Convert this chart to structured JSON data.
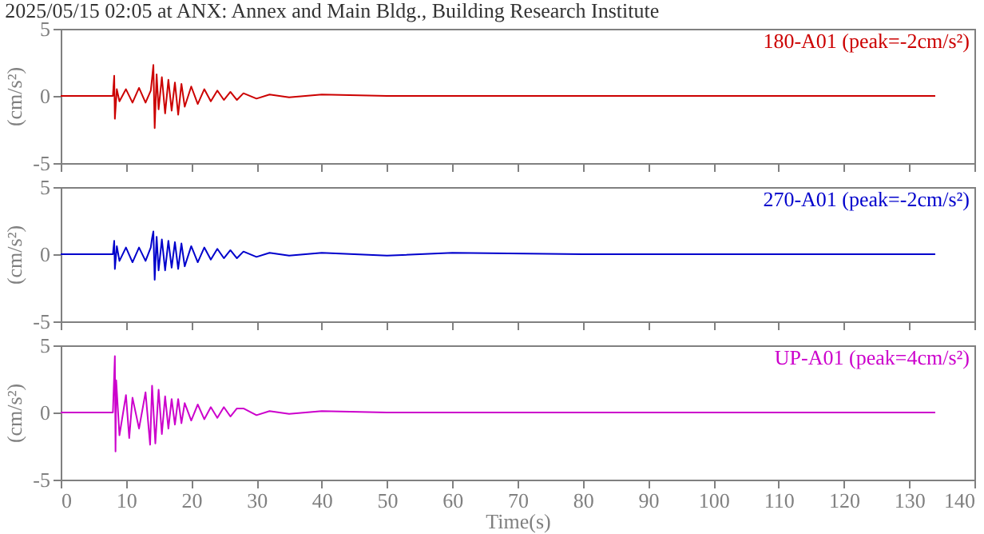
{
  "chart_data": [
    {
      "type": "line",
      "title": "2025/05/15 02:05 at ANX: Annex and Main Bldg., Building Research Institute",
      "ylabel": "(cm/s²)",
      "xlim": [
        0,
        140
      ],
      "xticks": [
        0,
        10,
        20,
        30,
        40,
        50,
        60,
        70,
        80,
        90,
        100,
        110,
        120,
        130,
        140
      ],
      "ylim": [
        -5,
        5
      ],
      "yticks": [
        -5,
        0,
        5
      ],
      "tick_labels": "y",
      "x": [
        0,
        8.0,
        8.2,
        8.3,
        8.6,
        9,
        10,
        11,
        12,
        13,
        13.8,
        14.0,
        14.2,
        14.4,
        14.7,
        15,
        15.5,
        16,
        16.5,
        17,
        17.5,
        18,
        18.5,
        19,
        20,
        21,
        22,
        23,
        24,
        25,
        26,
        27,
        28,
        30,
        32,
        35,
        40,
        50,
        60,
        80,
        100,
        134
      ],
      "series": [
        {
          "name": "180-A01 (peak=-2cm/s²)",
          "color": "#cc0000",
          "values": [
            0,
            0,
            1.5,
            -1.7,
            0.5,
            -0.4,
            0.5,
            -0.5,
            0.6,
            -0.5,
            0.4,
            1.3,
            2.3,
            -2.4,
            1.6,
            -1.0,
            1.4,
            -1.3,
            1.2,
            -1.1,
            1.0,
            -1.4,
            0.9,
            -0.8,
            0.7,
            -0.6,
            0.5,
            -0.4,
            0.4,
            -0.3,
            0.3,
            -0.3,
            0.2,
            -0.2,
            0.1,
            -0.1,
            0.1,
            0,
            0,
            0,
            0,
            0
          ]
        }
      ]
    },
    {
      "type": "line",
      "ylabel": "(cm/s²)",
      "xlim": [
        0,
        140
      ],
      "xticks": [
        0,
        10,
        20,
        30,
        40,
        50,
        60,
        70,
        80,
        90,
        100,
        110,
        120,
        130,
        140
      ],
      "ylim": [
        -5,
        5
      ],
      "yticks": [
        -5,
        0,
        5
      ],
      "tick_labels": "y",
      "x": [
        0,
        8.0,
        8.2,
        8.3,
        8.6,
        9,
        10,
        11,
        12,
        13,
        13.8,
        14.0,
        14.2,
        14.4,
        14.7,
        15,
        15.5,
        16,
        16.5,
        17,
        17.5,
        18,
        18.5,
        19,
        20,
        21,
        22,
        23,
        24,
        25,
        26,
        27,
        28,
        30,
        32,
        35,
        40,
        50,
        60,
        80,
        100,
        134
      ],
      "series": [
        {
          "name": "270-A01 (peak=-2cm/s²)",
          "color": "#0000cc",
          "values": [
            0,
            0,
            1.0,
            -1.1,
            0.6,
            -0.5,
            0.5,
            -0.6,
            0.5,
            -0.5,
            0.5,
            1.2,
            1.7,
            -1.9,
            1.3,
            -1.2,
            1.1,
            -1.2,
            1.0,
            -1.0,
            0.9,
            -1.1,
            0.8,
            -0.9,
            0.6,
            -0.6,
            0.5,
            -0.4,
            0.4,
            -0.3,
            0.3,
            -0.3,
            0.2,
            -0.2,
            0.1,
            -0.1,
            0.1,
            -0.1,
            0.1,
            0,
            0,
            0
          ]
        }
      ]
    },
    {
      "type": "line",
      "ylabel": "(cm/s²)",
      "xlabel": "Time(s)",
      "xlim": [
        0,
        140
      ],
      "xticks": [
        0,
        10,
        20,
        30,
        40,
        50,
        60,
        70,
        80,
        90,
        100,
        110,
        120,
        130,
        140
      ],
      "ylim": [
        -5,
        5
      ],
      "yticks": [
        -5,
        0,
        5
      ],
      "x": [
        0,
        8.0,
        8.3,
        8.4,
        8.5,
        9,
        10,
        10.5,
        11,
        12,
        13,
        13.7,
        14,
        14.5,
        15,
        15.5,
        16,
        16.5,
        17,
        17.5,
        18,
        18.5,
        19,
        20,
        21,
        22,
        23,
        24,
        25,
        26,
        27,
        28,
        30,
        32,
        35,
        40,
        50,
        60,
        80,
        100,
        134
      ],
      "series": [
        {
          "name": "UP-A01 (peak=4cm/s²)",
          "color": "#cc00cc",
          "values": [
            0,
            0,
            4.2,
            -2.9,
            2.4,
            -1.7,
            1.3,
            -1.9,
            1.1,
            -1.2,
            1.5,
            -2.4,
            2.0,
            -2.3,
            1.7,
            -1.6,
            1.2,
            -1.2,
            1.0,
            -0.9,
            1.0,
            -0.8,
            0.7,
            -0.6,
            0.6,
            -0.5,
            0.4,
            -0.4,
            0.4,
            -0.3,
            0.3,
            0.3,
            -0.2,
            0.1,
            -0.1,
            0.1,
            0,
            0,
            0,
            0,
            0
          ]
        }
      ]
    }
  ]
}
